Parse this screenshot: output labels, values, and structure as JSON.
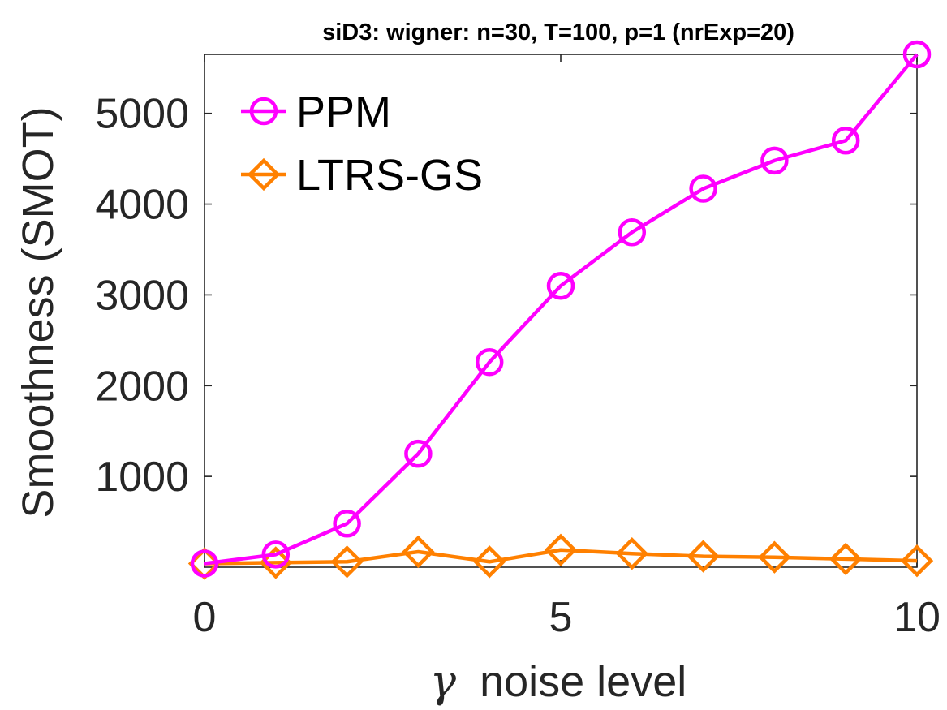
{
  "chart_data": {
    "type": "line",
    "title": "siD3: wigner: n=30, T=100, p=1 (nrExp=20)",
    "xlabel": "noise level",
    "xlabel_symbol": "γ",
    "ylabel": "Smoothness (SMOT)",
    "xlim": [
      0,
      10
    ],
    "ylim": [
      0,
      5650
    ],
    "xticks": [
      0,
      5,
      10
    ],
    "yticks": [
      1000,
      2000,
      3000,
      4000,
      5000
    ],
    "x": [
      0,
      1,
      2,
      3,
      4,
      5,
      6,
      7,
      8,
      9,
      10
    ],
    "grid": false,
    "legend_position": "top-left",
    "series": [
      {
        "name": "PPM",
        "color": "#ff00ff",
        "marker": "circle",
        "values": [
          40,
          140,
          480,
          1250,
          2260,
          3100,
          3690,
          4170,
          4480,
          4700,
          5650
        ]
      },
      {
        "name": "LTRS-GS",
        "color": "#ff8000",
        "marker": "diamond",
        "values": [
          40,
          50,
          60,
          170,
          60,
          190,
          150,
          120,
          110,
          90,
          70
        ]
      }
    ]
  }
}
